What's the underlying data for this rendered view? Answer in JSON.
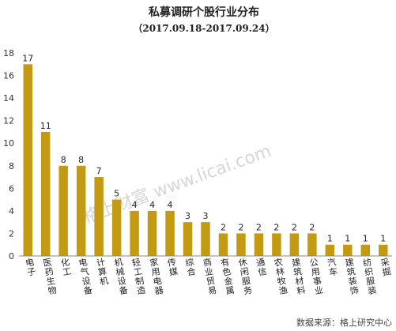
{
  "chart_data": {
    "type": "bar",
    "title": "私募调研个股行业分布",
    "subtitle": "（2017.09.18-2017.09.24）",
    "categories": [
      "电子",
      "医药生物",
      "化工",
      "电气设备",
      "计算机",
      "机械设备",
      "轻工制造",
      "家用电器",
      "传媒",
      "综合",
      "商业贸易",
      "有色金属",
      "休闲服务",
      "通信",
      "农林牧渔",
      "建筑材料",
      "公用事业",
      "汽车",
      "建筑装饰",
      "纺织服装",
      "采掘"
    ],
    "values": [
      17,
      11,
      8,
      8,
      7,
      5,
      4,
      4,
      4,
      3,
      3,
      2,
      2,
      2,
      2,
      2,
      2,
      1,
      1,
      1,
      1
    ],
    "yticks": [
      0,
      2,
      4,
      6,
      8,
      10,
      12,
      14,
      16,
      18
    ],
    "ylim": [
      0,
      18
    ],
    "grid": false,
    "legend": "none",
    "bar_color": "#C49A12",
    "watermark": "格上财富 www.licai.com",
    "source": "数据来源：格上研究中心"
  }
}
